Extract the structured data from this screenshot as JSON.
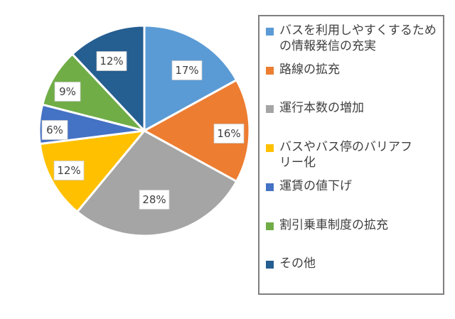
{
  "chart_data": {
    "type": "pie",
    "title": "",
    "unit": "%",
    "direction": "clockwise",
    "start_angle_deg": 0,
    "legend_position": "right",
    "background_color": "#FFFFFF",
    "data_label_text_color": "#404040",
    "legend_text_color": "#404040",
    "legend_border_color": "#7F7F7F",
    "slice_separator_color": "#FFFFFF",
    "slices": [
      {
        "label": "バスを利用しやすくするための情報発信の充実",
        "legend_text": "バスを利用しやすくするため\nの情報発信の充実",
        "value": 17,
        "pct_label": "17%",
        "color": "#5B9BD5"
      },
      {
        "label": "路線の拡充",
        "legend_text": "路線の拡充",
        "value": 16,
        "pct_label": "16%",
        "color": "#ED7D31"
      },
      {
        "label": "運行本数の増加",
        "legend_text": "運行本数の増加",
        "value": 28,
        "pct_label": "28%",
        "color": "#A5A5A5"
      },
      {
        "label": "バスやバス停のバリアフリー化",
        "legend_text": "バスやバス停のバリアフ\nリー化",
        "value": 12,
        "pct_label": "12%",
        "color": "#FFC000"
      },
      {
        "label": "運賃の値下げ",
        "legend_text": "運賃の値下げ",
        "value": 6,
        "pct_label": "6%",
        "color": "#4472C4"
      },
      {
        "label": "割引乗車制度の拡充",
        "legend_text": "割引乗車制度の拡充",
        "value": 9,
        "pct_label": "9%",
        "color": "#70AD47"
      },
      {
        "label": "その他",
        "legend_text": "その他",
        "value": 12,
        "pct_label": "12%",
        "color": "#255E91"
      }
    ]
  }
}
